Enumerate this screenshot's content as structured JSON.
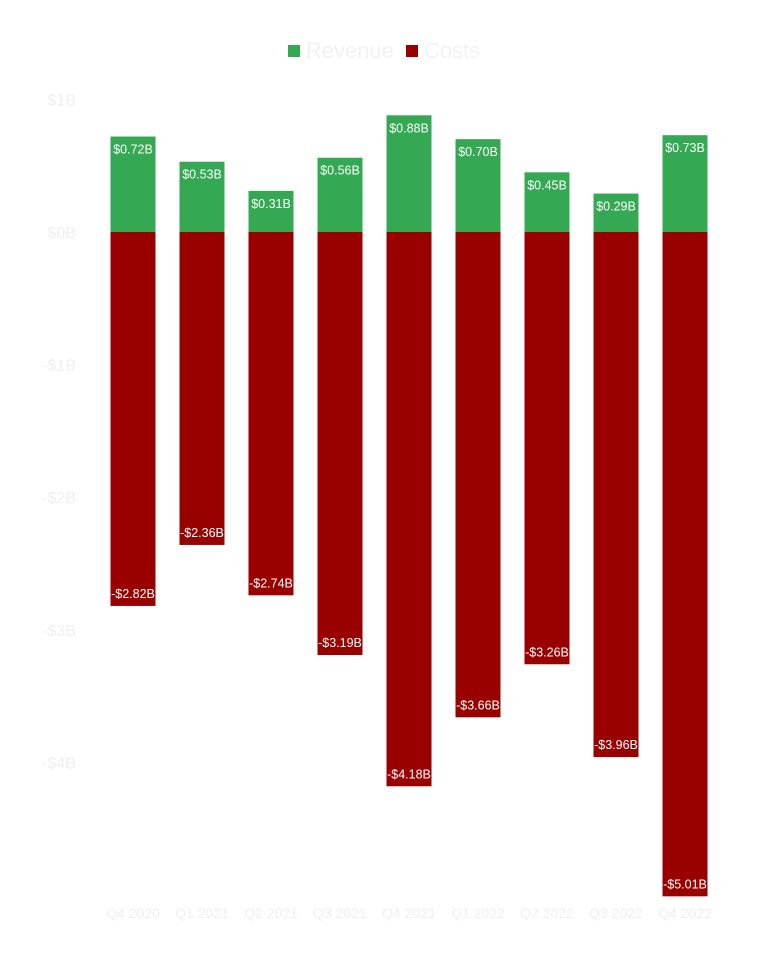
{
  "chart_data": {
    "type": "bar",
    "categories": [
      "Q4 2020",
      "Q1 2021",
      "Q2 2021",
      "Q3 2021",
      "Q4 2021",
      "Q1 2022",
      "Q2 2022",
      "Q3 2022",
      "Q4 2022"
    ],
    "series": [
      {
        "name": "Revenue",
        "color": "#34a853",
        "values": [
          0.72,
          0.53,
          0.31,
          0.56,
          0.88,
          0.7,
          0.45,
          0.29,
          0.73
        ],
        "labels": [
          "$0.72B",
          "$0.53B",
          "$0.31B",
          "$0.56B",
          "$0.88B",
          "$0.70B",
          "$0.45B",
          "$0.29B",
          "$0.73B"
        ]
      },
      {
        "name": "Costs",
        "color": "#990000",
        "values": [
          -2.82,
          -2.36,
          -2.74,
          -3.19,
          -4.18,
          -3.66,
          -3.26,
          -3.96,
          -5.01
        ],
        "labels": [
          "-$2.82B",
          "-$2.36B",
          "-$2.74B",
          "-$3.19B",
          "-$4.18B",
          "-$3.66B",
          "-$3.26B",
          "-$3.96B",
          "-$5.01B"
        ]
      }
    ],
    "stacked": true,
    "y_ticks": [
      1,
      0,
      -1,
      -2,
      -3,
      -4
    ],
    "y_tick_labels": [
      "$1B",
      "$0B",
      "-$1B",
      "-$2B",
      "-$3B",
      "-$4B"
    ],
    "ylim": [
      -5.01,
      1
    ],
    "legend_position": "top",
    "grid": false,
    "title": "",
    "xlabel": "",
    "ylabel": ""
  }
}
